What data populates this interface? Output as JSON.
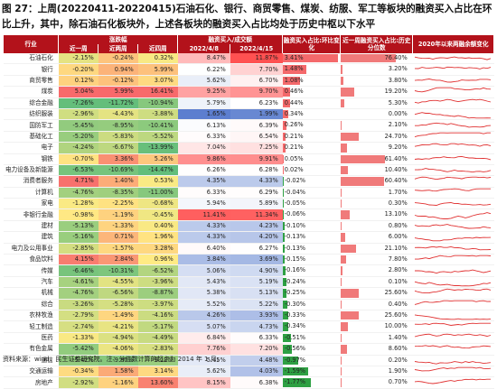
{
  "title": "图 27：上周(20220411-20220415)石油石化、银行、商贸零售、煤炭、纺服、军工等板块的融资买入占比在环比上升，其中，除石油石化板块外，上述各板块的融资买入占比均处于历史中枢以下水平",
  "headers": [
    "行业",
    "近一周",
    "近两周",
    "近四周",
    "融资买入/成交额 2022/4/8",
    "融资买入/成交额 2022/4/15",
    "融资买入占比 :环比变化",
    "近一周融资买入占比:历史分位数",
    "2020年以来两融余额变化"
  ],
  "header_top": [
    "行业",
    "涨跌幅",
    "",
    "",
    "融资买入/成交额",
    "",
    "融资买入占比:环比变化",
    "近一周融资买入占比:历史分位数",
    "2020年以来两融余额变化"
  ],
  "header_bottom": [
    "",
    "近一周",
    "近两周",
    "近四周",
    "2022/4/8",
    "2022/4/15",
    "",
    "",
    ""
  ],
  "rows": [
    {
      "name": "石油石化",
      "w1": "-2.15%",
      "w2": "-0.24%",
      "w4": "0.32%",
      "r1": "8.47%",
      "r2": "11.87%",
      "chg": "3.41%",
      "pct": "76.40%",
      "chgv": 3.41,
      "pctv": 76.4
    },
    {
      "name": "银行",
      "w1": "-0.20%",
      "w2": "0.94%",
      "w4": "5.99%",
      "r1": "6.22%",
      "r2": "7.70%",
      "chg": "1.48%",
      "pct": "3.20%",
      "chgv": 1.48,
      "pctv": 3.2
    },
    {
      "name": "商贸零售",
      "w1": "0.12%",
      "w2": "-0.12%",
      "w4": "3.07%",
      "r1": "5.62%",
      "r2": "6.70%",
      "chg": "1.08%",
      "pct": "3.80%",
      "chgv": 1.08,
      "pctv": 3.8
    },
    {
      "name": "煤炭",
      "w1": "5.04%",
      "w2": "5.99%",
      "w4": "16.41%",
      "r1": "9.25%",
      "r2": "9.70%",
      "chg": "0.46%",
      "pct": "19.20%",
      "chgv": 0.46,
      "pctv": 19.2
    },
    {
      "name": "综合金融",
      "w1": "-7.26%",
      "w2": "-11.72%",
      "w4": "-10.94%",
      "r1": "5.79%",
      "r2": "6.23%",
      "chg": "0.44%",
      "pct": "5.30%",
      "chgv": 0.44,
      "pctv": 5.3
    },
    {
      "name": "纺织服装",
      "w1": "-2.96%",
      "w2": "-4.43%",
      "w4": "-3.88%",
      "r1": "1.65%",
      "r2": "1.99%",
      "chg": "0.34%",
      "pct": "0.00%",
      "chgv": 0.34,
      "pctv": 0.0
    },
    {
      "name": "国防军工",
      "w1": "-5.45%",
      "w2": "-8.95%",
      "w4": "-10.41%",
      "r1": "6.13%",
      "r2": "6.39%",
      "chg": "0.26%",
      "pct": "2.10%",
      "chgv": 0.26,
      "pctv": 2.1
    },
    {
      "name": "基础化工",
      "w1": "-5.20%",
      "w2": "-5.83%",
      "w4": "-5.52%",
      "r1": "6.33%",
      "r2": "6.54%",
      "chg": "0.21%",
      "pct": "24.70%",
      "chgv": 0.21,
      "pctv": 24.7
    },
    {
      "name": "电子",
      "w1": "-4.24%",
      "w2": "-6.67%",
      "w4": "-13.99%",
      "r1": "7.04%",
      "r2": "7.25%",
      "chg": "0.21%",
      "pct": "9.20%",
      "chgv": 0.21,
      "pctv": 9.2
    },
    {
      "name": "钢铁",
      "w1": "-0.70%",
      "w2": "3.36%",
      "w4": "5.26%",
      "r1": "9.86%",
      "r2": "9.91%",
      "chg": "0.05%",
      "pct": "61.40%",
      "chgv": 0.05,
      "pctv": 61.4
    },
    {
      "name": "电力设备及新能源",
      "w1": "-6.53%",
      "w2": "-10.69%",
      "w4": "-14.47%",
      "r1": "6.26%",
      "r2": "6.28%",
      "chg": "0.02%",
      "pct": "10.40%",
      "chgv": 0.02,
      "pctv": 10.4
    },
    {
      "name": "消费者服务",
      "w1": "4.71%",
      "w2": "1.40%",
      "w4": "0.53%",
      "r1": "4.35%",
      "r2": "4.33%",
      "chg": "-0.02%",
      "pct": "60.40%",
      "chgv": -0.02,
      "pctv": 60.4
    },
    {
      "name": "计算机",
      "w1": "-4.76%",
      "w2": "-8.35%",
      "w4": "-11.00%",
      "r1": "6.33%",
      "r2": "6.29%",
      "chg": "-0.04%",
      "pct": "1.70%",
      "chgv": -0.04,
      "pctv": 1.7
    },
    {
      "name": "家电",
      "w1": "-1.28%",
      "w2": "-2.25%",
      "w4": "-0.68%",
      "r1": "5.94%",
      "r2": "5.89%",
      "chg": "-0.05%",
      "pct": "0.30%",
      "chgv": -0.05,
      "pctv": 0.3
    },
    {
      "name": "非银行金融",
      "w1": "-0.98%",
      "w2": "-1.19%",
      "w4": "-0.45%",
      "r1": "11.41%",
      "r2": "11.34%",
      "chg": "-0.06%",
      "pct": "13.10%",
      "chgv": -0.06,
      "pctv": 13.1
    },
    {
      "name": "建材",
      "w1": "-5.13%",
      "w2": "-1.33%",
      "w4": "0.40%",
      "r1": "4.33%",
      "r2": "4.23%",
      "chg": "-0.10%",
      "pct": "0.80%",
      "chgv": -0.1,
      "pctv": 0.8
    },
    {
      "name": "建筑",
      "w1": "-5.16%",
      "w2": "0.71%",
      "w4": "1.96%",
      "r1": "4.33%",
      "r2": "4.20%",
      "chg": "-0.13%",
      "pct": "6.00%",
      "chgv": -0.13,
      "pctv": 6.0
    },
    {
      "name": "电力及公用事业",
      "w1": "-2.85%",
      "w2": "-1.57%",
      "w4": "3.28%",
      "r1": "6.40%",
      "r2": "6.27%",
      "chg": "-0.13%",
      "pct": "21.10%",
      "chgv": -0.13,
      "pctv": 21.1
    },
    {
      "name": "食品饮料",
      "w1": "4.15%",
      "w2": "2.84%",
      "w4": "0.96%",
      "r1": "3.84%",
      "r2": "3.69%",
      "chg": "-0.15%",
      "pct": "7.80%",
      "chgv": -0.15,
      "pctv": 7.8
    },
    {
      "name": "传媒",
      "w1": "-6.46%",
      "w2": "-10.31%",
      "w4": "-6.52%",
      "r1": "5.06%",
      "r2": "4.90%",
      "chg": "-0.16%",
      "pct": "2.80%",
      "chgv": -0.16,
      "pctv": 2.8
    },
    {
      "name": "汽车",
      "w1": "-4.61%",
      "w2": "-4.55%",
      "w4": "-3.96%",
      "r1": "5.43%",
      "r2": "5.19%",
      "chg": "-0.24%",
      "pct": "0.10%",
      "chgv": -0.24,
      "pctv": 0.1
    },
    {
      "name": "机械",
      "w1": "-4.76%",
      "w2": "-6.56%",
      "w4": "-8.87%",
      "r1": "5.38%",
      "r2": "5.13%",
      "chg": "-0.25%",
      "pct": "25.60%",
      "chgv": -0.25,
      "pctv": 25.6
    },
    {
      "name": "综合",
      "w1": "-3.26%",
      "w2": "-5.28%",
      "w4": "-3.97%",
      "r1": "5.52%",
      "r2": "5.22%",
      "chg": "-0.30%",
      "pct": "0.40%",
      "chgv": -0.3,
      "pctv": 0.4
    },
    {
      "name": "农林牧渔",
      "w1": "-2.79%",
      "w2": "-1.49%",
      "w4": "-4.16%",
      "r1": "4.26%",
      "r2": "3.93%",
      "chg": "-0.33%",
      "pct": "25.60%",
      "chgv": -0.33,
      "pctv": 25.6
    },
    {
      "name": "轻工制造",
      "w1": "-2.74%",
      "w2": "-4.21%",
      "w4": "-5.17%",
      "r1": "5.07%",
      "r2": "4.73%",
      "chg": "-0.34%",
      "pct": "10.00%",
      "chgv": -0.34,
      "pctv": 10.0
    },
    {
      "name": "医药",
      "w1": "-1.33%",
      "w2": "-4.94%",
      "w4": "-4.49%",
      "r1": "6.84%",
      "r2": "6.33%",
      "chg": "-0.51%",
      "pct": "1.40%",
      "chgv": -0.51,
      "pctv": 1.4
    },
    {
      "name": "有色金属",
      "w1": "-5.42%",
      "w2": "-4.06%",
      "w4": "-2.83%",
      "r1": "7.76%",
      "r2": "7.20%",
      "chg": "-0.56%",
      "pct": "8.60%",
      "chgv": -0.56,
      "pctv": 8.6
    },
    {
      "name": "通信",
      "w1": "-5.42%",
      "w2": "-9.80%",
      "w4": "-9.12%",
      "r1": "5.45%",
      "r2": "4.48%",
      "chg": "-0.97%",
      "pct": "0.20%",
      "chgv": -0.97,
      "pctv": 0.2
    },
    {
      "name": "交通运输",
      "w1": "-0.34%",
      "w2": "1.58%",
      "w4": "3.14%",
      "r1": "5.62%",
      "r2": "4.03%",
      "chg": "-1.59%",
      "pct": "1.90%",
      "chgv": -1.59,
      "pctv": 1.9
    },
    {
      "name": "房地产",
      "w1": "-2.92%",
      "w2": "-1.16%",
      "w4": "13.60%",
      "r1": "8.15%",
      "r2": "6.38%",
      "chg": "-1.77%",
      "pct": "0.70%",
      "chgv": -1.77,
      "pctv": 0.7
    }
  ],
  "source": "资料来源：wind，民生证券研究院。注：分位数计算的起点为 2014 年 1 月。",
  "colors": {
    "header": "#b3121b",
    "pos_chg": "#f4696b",
    "neg_chg": "#2ea043",
    "pct_bar": "#f07a7a",
    "spark": "#e03030",
    "ratio_lo": "#5b7fce",
    "ratio_hi": "#ef4d4d"
  }
}
